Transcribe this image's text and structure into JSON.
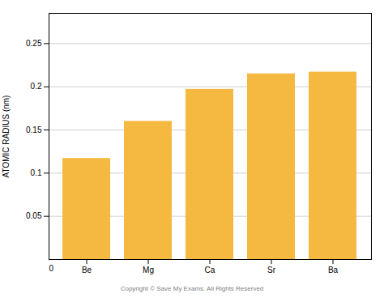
{
  "chart_data": {
    "type": "bar",
    "categories": [
      "Be",
      "Mg",
      "Ca",
      "Sr",
      "Ba"
    ],
    "values": [
      0.117,
      0.16,
      0.197,
      0.215,
      0.217
    ],
    "color": "#F5B942",
    "ylabel": "ATOMIC RADIUS (nm)",
    "ylim": [
      0,
      0.285
    ],
    "yticks": [
      0.05,
      0.1,
      0.15,
      0.2,
      0.25
    ],
    "grid": true,
    "annotations": [
      "0",
      "Copyright © Save My Exams. All Rights Reserved"
    ]
  }
}
